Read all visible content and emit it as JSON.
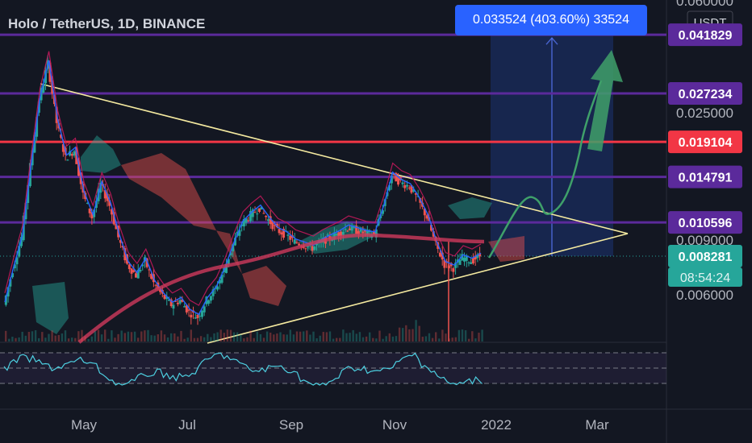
{
  "header": {
    "title": "Holo / TetherUS, 1D, BINANCE"
  },
  "tooltip": {
    "text": "0.033524 (403.60%) 33524"
  },
  "colors": {
    "background": "#131722",
    "purple_line": "#5b2a9b",
    "red_line": "#f23645",
    "yellow_line": "#f5eaa0",
    "teal_price": "#26a69a",
    "candle_up": "#26a69a",
    "candle_down": "#ef5350",
    "ma": "#d03a5c",
    "projection": "#3fa06a"
  },
  "chart_data": {
    "type": "candlestick",
    "symbol": "Holo / TetherUS",
    "timeframe": "1D",
    "exchange": "BINANCE",
    "y_axis": {
      "unit": "USDT",
      "ticks": [
        "0.060000",
        "0.025000",
        "0.009000",
        "0.006000"
      ]
    },
    "x_axis": {
      "ticks": [
        "May",
        "Jul",
        "Sep",
        "Nov",
        "2022",
        "Mar"
      ]
    },
    "horizontal_levels": [
      {
        "label": "0.041829",
        "color": "#5b2a9b"
      },
      {
        "label": "0.027234",
        "color": "#5b2a9b"
      },
      {
        "label": "0.019104",
        "color": "#f23645"
      },
      {
        "label": "0.014791",
        "color": "#5b2a9b"
      },
      {
        "label": "0.010596",
        "color": "#5b2a9b"
      }
    ],
    "current_price": {
      "label": "0.008281",
      "countdown": "08:54:24",
      "color": "#26a69a"
    },
    "projection": {
      "text": "0.033524 (403.60%) 33524",
      "target": 0.041829
    },
    "price_path": [
      0.0058,
      0.0075,
      0.0095,
      0.016,
      0.026,
      0.034,
      0.022,
      0.017,
      0.018,
      0.013,
      0.011,
      0.014,
      0.012,
      0.0095,
      0.0078,
      0.0072,
      0.008,
      0.0068,
      0.0062,
      0.0058,
      0.006,
      0.0055,
      0.0053,
      0.006,
      0.0065,
      0.0075,
      0.009,
      0.0105,
      0.0112,
      0.0118,
      0.0108,
      0.01,
      0.0097,
      0.0092,
      0.009,
      0.0088,
      0.0092,
      0.0095,
      0.0098,
      0.0102,
      0.01,
      0.0098,
      0.0097,
      0.0118,
      0.015,
      0.0142,
      0.0138,
      0.0125,
      0.011,
      0.009,
      0.0078,
      0.0076,
      0.0082,
      0.008,
      0.0083
    ],
    "oscillator": {
      "type": "RSI",
      "bands": [
        70,
        50,
        30
      ]
    },
    "grid": true,
    "legend": "none"
  }
}
